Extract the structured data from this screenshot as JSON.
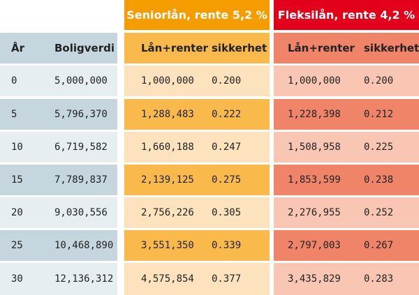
{
  "colors": {
    "blue_dark": "#c6d6df",
    "blue_light": "#e7eef2",
    "orange_header": "#f59c00",
    "orange_dark": "#f9ba4b",
    "orange_light": "#fde3bd",
    "red_header": "#e2001a",
    "red_dark": "#f08468",
    "red_light": "#f9c6b3"
  },
  "groups": {
    "senior": "Seniorlån, rente 5,2 %",
    "fleksi": "Fleksilån, rente 4,2 %"
  },
  "columns": {
    "year": "År",
    "home_value": "Boligverdi",
    "senior_loan": "Lån+renter",
    "senior_security": "sikkerhet",
    "fleksi_loan": "Lån+renter",
    "fleksi_security": "sikkerhet"
  },
  "rows": [
    {
      "year": "0",
      "home_value": "5,000,000",
      "senior_loan": "1,000,000",
      "senior_security": "0.200",
      "fleksi_loan": "1,000,000",
      "fleksi_security": "0.200"
    },
    {
      "year": "5",
      "home_value": "5,796,370",
      "senior_loan": "1,288,483",
      "senior_security": "0.222",
      "fleksi_loan": "1,228,398",
      "fleksi_security": "0.212"
    },
    {
      "year": "10",
      "home_value": "6,719,582",
      "senior_loan": "1,660,188",
      "senior_security": "0.247",
      "fleksi_loan": "1,508,958",
      "fleksi_security": "0.225"
    },
    {
      "year": "15",
      "home_value": "7,789,837",
      "senior_loan": "2,139,125",
      "senior_security": "0.275",
      "fleksi_loan": "1,853,599",
      "fleksi_security": "0.238"
    },
    {
      "year": "20",
      "home_value": "9,030,556",
      "senior_loan": "2,756,226",
      "senior_security": "0.305",
      "fleksi_loan": "2,276,955",
      "fleksi_security": "0.252"
    },
    {
      "year": "25",
      "home_value": "10,468,890",
      "senior_loan": "3,551,350",
      "senior_security": "0.339",
      "fleksi_loan": "2,797,003",
      "fleksi_security": "0.267"
    },
    {
      "year": "30",
      "home_value": "12,136,312",
      "senior_loan": "4,575,854",
      "senior_security": "0.377",
      "fleksi_loan": "3,435,829",
      "fleksi_security": "0.283"
    }
  ]
}
